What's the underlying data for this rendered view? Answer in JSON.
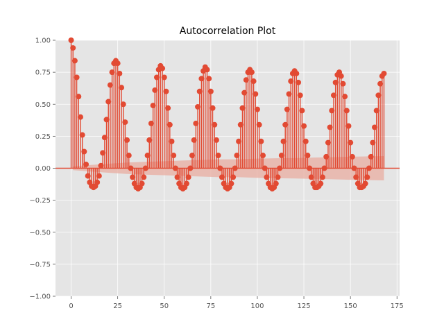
{
  "chart_data": {
    "type": "stem",
    "title": "Autocorrelation Plot",
    "xlabel": "",
    "ylabel": "",
    "xlim": [
      -8.4,
      176.4
    ],
    "ylim": [
      -1.0,
      1.0
    ],
    "x_ticks": [
      0,
      25,
      50,
      75,
      100,
      125,
      150,
      175
    ],
    "y_ticks": [
      -1.0,
      -0.75,
      -0.5,
      -0.25,
      0.0,
      0.25,
      0.5,
      0.75,
      1.0
    ],
    "x_tick_labels": [
      "0",
      "25",
      "50",
      "75",
      "100",
      "125",
      "150",
      "175"
    ],
    "y_tick_labels": [
      "−1.00",
      "−0.75",
      "−0.50",
      "−0.25",
      "0.00",
      "0.25",
      "0.50",
      "0.75",
      "1.00"
    ],
    "grid": true,
    "lags": [
      0,
      1,
      2,
      3,
      4,
      5,
      6,
      7,
      8,
      9,
      10,
      11,
      12,
      13,
      14,
      15,
      16,
      17,
      18,
      19,
      20,
      21,
      22,
      23,
      24,
      25,
      26,
      27,
      28,
      29,
      30,
      31,
      32,
      33,
      34,
      35,
      36,
      37,
      38,
      39,
      40,
      41,
      42,
      43,
      44,
      45,
      46,
      47,
      48,
      49,
      50,
      51,
      52,
      53,
      54,
      55,
      56,
      57,
      58,
      59,
      60,
      61,
      62,
      63,
      64,
      65,
      66,
      67,
      68,
      69,
      70,
      71,
      72,
      73,
      74,
      75,
      76,
      77,
      78,
      79,
      80,
      81,
      82,
      83,
      84,
      85,
      86,
      87,
      88,
      89,
      90,
      91,
      92,
      93,
      94,
      95,
      96,
      97,
      98,
      99,
      100,
      101,
      102,
      103,
      104,
      105,
      106,
      107,
      108,
      109,
      110,
      111,
      112,
      113,
      114,
      115,
      116,
      117,
      118,
      119,
      120,
      121,
      122,
      123,
      124,
      125,
      126,
      127,
      128,
      129,
      130,
      131,
      132,
      133,
      134,
      135,
      136,
      137,
      138,
      139,
      140,
      141,
      142,
      143,
      144,
      145,
      146,
      147,
      148,
      149,
      150,
      151,
      152,
      153,
      154,
      155,
      156,
      157,
      158,
      159,
      160,
      161,
      162,
      163,
      164,
      165,
      166,
      167,
      168
    ],
    "acf": [
      1.0,
      0.94,
      0.84,
      0.71,
      0.56,
      0.4,
      0.26,
      0.13,
      0.03,
      -0.06,
      -0.11,
      -0.14,
      -0.15,
      -0.14,
      -0.11,
      -0.06,
      0.02,
      0.12,
      0.24,
      0.38,
      0.52,
      0.65,
      0.75,
      0.82,
      0.84,
      0.82,
      0.74,
      0.63,
      0.5,
      0.36,
      0.22,
      0.1,
      0.0,
      -0.07,
      -0.12,
      -0.15,
      -0.16,
      -0.15,
      -0.12,
      -0.07,
      0.0,
      0.1,
      0.22,
      0.35,
      0.49,
      0.61,
      0.71,
      0.77,
      0.8,
      0.78,
      0.71,
      0.6,
      0.47,
      0.34,
      0.21,
      0.1,
      0.0,
      -0.07,
      -0.12,
      -0.15,
      -0.16,
      -0.15,
      -0.12,
      -0.07,
      0.0,
      0.1,
      0.22,
      0.35,
      0.48,
      0.6,
      0.7,
      0.76,
      0.79,
      0.77,
      0.7,
      0.6,
      0.47,
      0.34,
      0.22,
      0.1,
      0.0,
      -0.07,
      -0.12,
      -0.15,
      -0.16,
      -0.15,
      -0.12,
      -0.07,
      0.0,
      0.1,
      0.21,
      0.34,
      0.47,
      0.59,
      0.69,
      0.75,
      0.77,
      0.75,
      0.68,
      0.58,
      0.46,
      0.34,
      0.21,
      0.1,
      0.0,
      -0.07,
      -0.12,
      -0.15,
      -0.16,
      -0.15,
      -0.12,
      -0.07,
      0.0,
      0.1,
      0.21,
      0.34,
      0.46,
      0.58,
      0.68,
      0.74,
      0.76,
      0.74,
      0.67,
      0.57,
      0.45,
      0.33,
      0.21,
      0.1,
      0.0,
      -0.07,
      -0.12,
      -0.15,
      -0.15,
      -0.14,
      -0.12,
      -0.07,
      0.0,
      0.09,
      0.2,
      0.32,
      0.45,
      0.57,
      0.67,
      0.73,
      0.75,
      0.72,
      0.66,
      0.56,
      0.45,
      0.33,
      0.2,
      0.09,
      0.0,
      -0.07,
      -0.12,
      -0.15,
      -0.15,
      -0.14,
      -0.12,
      -0.07,
      0.0,
      0.09,
      0.2,
      0.32,
      0.45,
      0.57,
      0.66,
      0.72,
      0.74
    ],
    "confidence_band": {
      "lags": [
        1,
        10,
        20,
        30,
        40,
        50,
        60,
        70,
        80,
        90,
        100,
        110,
        120,
        130,
        140,
        150,
        160,
        168
      ],
      "upper": [
        0.015,
        0.025,
        0.035,
        0.045,
        0.05,
        0.055,
        0.06,
        0.065,
        0.07,
        0.07,
        0.075,
        0.078,
        0.08,
        0.083,
        0.086,
        0.09,
        0.093,
        0.095
      ],
      "lower": [
        -0.015,
        -0.025,
        -0.035,
        -0.045,
        -0.05,
        -0.055,
        -0.06,
        -0.065,
        -0.07,
        -0.07,
        -0.075,
        -0.078,
        -0.08,
        -0.083,
        -0.086,
        -0.09,
        -0.093,
        -0.095
      ]
    },
    "colors": {
      "figure_bg": "#ffffff",
      "axes_bg": "#e5e5e5",
      "grid": "#ffffff",
      "stem": "#e24a33",
      "band": "#e8aca0",
      "text": "#555555"
    }
  }
}
